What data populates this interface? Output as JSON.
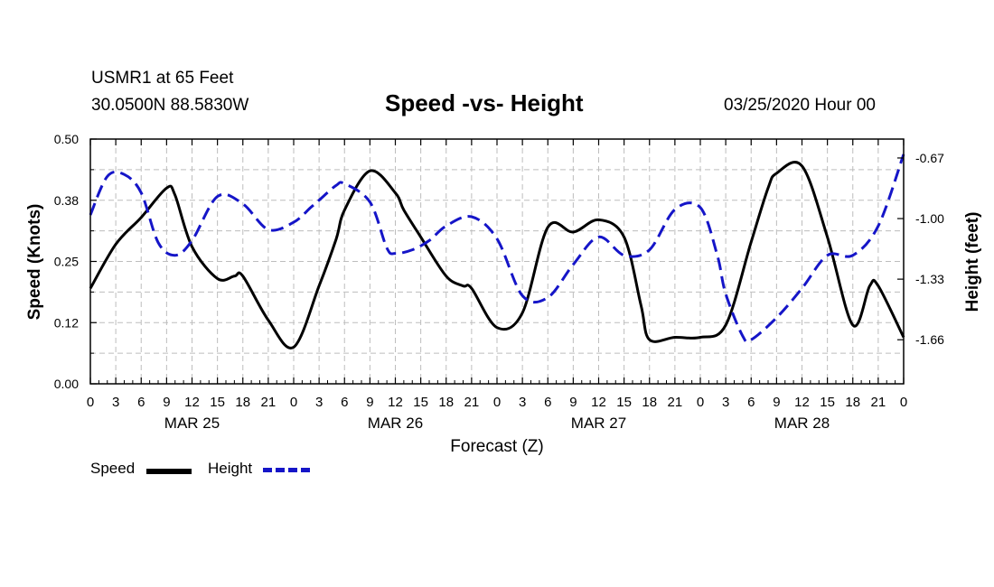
{
  "header": {
    "station": "USMR1 at 65 Feet",
    "coords": "30.0500N 88.5830W",
    "title": "Speed -vs- Height",
    "date": "03/25/2020 Hour 00"
  },
  "colors": {
    "speed": "#000000",
    "height": "#1515c8",
    "grid": "#bdbdbd"
  },
  "legend": {
    "speed_label": "Speed",
    "height_label": "Height"
  },
  "chart_data": {
    "type": "line",
    "title": "Speed -vs- Height",
    "xlabel": "Forecast (Z)",
    "ylabel": "Speed (Knots)",
    "y2label": "Height (feet)",
    "xlim": [
      0,
      96
    ],
    "ylim": [
      0,
      0.5
    ],
    "y2lim": [
      -1.9,
      -0.567
    ],
    "yticks": [
      "0.00",
      "0.12",
      "0.25",
      "0.38",
      "0.50"
    ],
    "y2ticks": [
      "-0.67",
      "-1.00",
      "-1.33",
      "-1.66"
    ],
    "xtick_labels": [
      "0",
      "3",
      "6",
      "9",
      "12",
      "15",
      "18",
      "21",
      "0",
      "3",
      "6",
      "9",
      "12",
      "15",
      "18",
      "21",
      "0",
      "3",
      "6",
      "9",
      "12",
      "15",
      "18",
      "21",
      "0",
      "3",
      "6",
      "9",
      "12",
      "15",
      "18",
      "21",
      "0"
    ],
    "day_labels": [
      "MAR 25",
      "MAR 26",
      "MAR 27",
      "MAR 28"
    ],
    "grid": true,
    "series": [
      {
        "name": "Speed",
        "axis": "left",
        "x": [
          0,
          3,
          6,
          9,
          10,
          12,
          15,
          17,
          18,
          21,
          24,
          27,
          29,
          30,
          33,
          36,
          37,
          39,
          42,
          44,
          45,
          48,
          51,
          54,
          57,
          60,
          63,
          65,
          66,
          69,
          72,
          75,
          78,
          80,
          81,
          84,
          87,
          90,
          92,
          93,
          96
        ],
        "y": [
          0.195,
          0.285,
          0.34,
          0.4,
          0.385,
          0.28,
          0.215,
          0.22,
          0.22,
          0.13,
          0.075,
          0.2,
          0.295,
          0.355,
          0.435,
          0.39,
          0.355,
          0.3,
          0.22,
          0.2,
          0.195,
          0.115,
          0.145,
          0.32,
          0.31,
          0.335,
          0.3,
          0.16,
          0.09,
          0.095,
          0.095,
          0.12,
          0.29,
          0.4,
          0.43,
          0.445,
          0.3,
          0.12,
          0.2,
          0.2,
          0.095
        ]
      },
      {
        "name": "Height",
        "axis": "right",
        "x": [
          0,
          2,
          4,
          6,
          8,
          10,
          12,
          15,
          18,
          21,
          24,
          26,
          27,
          29,
          30,
          33,
          35,
          36,
          38,
          40,
          42,
          45,
          48,
          51,
          54,
          57,
          60,
          63,
          66,
          69,
          72,
          74,
          75,
          77,
          78,
          81,
          84,
          87,
          90,
          93,
          96
        ],
        "y": [
          -0.98,
          -0.77,
          -0.76,
          -0.86,
          -1.13,
          -1.2,
          -1.12,
          -0.88,
          -0.92,
          -1.06,
          -1.02,
          -0.94,
          -0.9,
          -0.82,
          -0.81,
          -0.91,
          -1.16,
          -1.19,
          -1.17,
          -1.12,
          -1.04,
          -0.99,
          -1.11,
          -1.42,
          -1.43,
          -1.25,
          -1.1,
          -1.2,
          -1.17,
          -0.95,
          -0.94,
          -1.2,
          -1.41,
          -1.64,
          -1.66,
          -1.54,
          -1.38,
          -1.2,
          -1.2,
          -1.04,
          -0.65
        ]
      }
    ]
  }
}
